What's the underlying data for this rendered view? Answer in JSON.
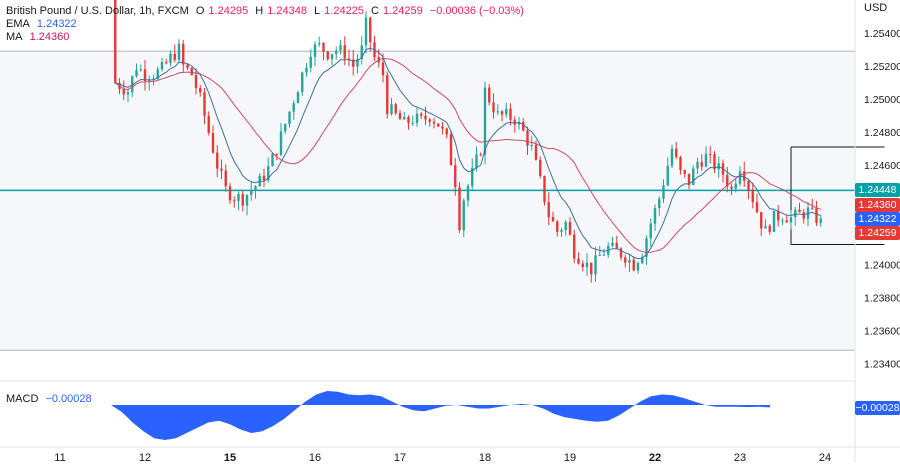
{
  "header": {
    "symbol": "British Pound / U.S. Dollar, 1h, FXCM",
    "open_label": "O",
    "open": "1.24295",
    "high_label": "H",
    "high": "1.24348",
    "low_label": "L",
    "low": "1.24225",
    "close_label": "C",
    "close": "1.24259",
    "change": "−0.00036 (−0.03%)"
  },
  "indicators": {
    "ema_label": "EMA",
    "ema_value": "1.24322",
    "ma_label": "MA",
    "ma_value": "1.24360",
    "macd_label": "MACD",
    "macd_value": "−0.00028"
  },
  "price_axis": {
    "currency": "USD",
    "ticks": [
      "1.25400",
      "1.25200",
      "1.25000",
      "1.24800",
      "1.24600",
      "1.24200",
      "1.24000",
      "1.23800",
      "1.23600",
      "1.23400"
    ]
  },
  "price_labels": [
    {
      "text": "1.24448",
      "color": "#00a2a6",
      "value": 1.24448
    },
    {
      "text": "1.24360",
      "color": "#e53935",
      "value": 1.2436
    },
    {
      "text": "1.24322",
      "color": "#2962ff",
      "value": 1.24322
    },
    {
      "text": "1.24259",
      "color": "#e53935",
      "value": 1.24259
    }
  ],
  "macd_axis_label": {
    "text": "−0.00028",
    "color": "#2962ff"
  },
  "time_axis": {
    "ticks": [
      "11",
      "12",
      "15",
      "16",
      "17",
      "18",
      "19",
      "22",
      "23",
      "24"
    ],
    "bold": [
      "15",
      "22"
    ]
  },
  "colors": {
    "up": "#26a69a",
    "down": "#e53935",
    "ema": "#3f6fa0",
    "ma": "#d04a5e",
    "hline": "#00a2a6",
    "macd": "#2962ff"
  },
  "chart_data": {
    "type": "candlestick",
    "title": "British Pound / U.S. Dollar, 1h, FXCM",
    "ylabel": "USD",
    "ylim": [
      1.233,
      1.256
    ],
    "horizontal_levels": [
      1.2529,
      1.24448,
      1.2348
    ],
    "range_box": {
      "top": 1.2471,
      "bottom": 1.2412,
      "from_day": 22.6,
      "to_day": 23.7
    },
    "x_ticks": [
      "11",
      "12",
      "15",
      "16",
      "17",
      "18",
      "19",
      "22",
      "23",
      "24"
    ],
    "close_path": [
      [
        11.6,
        1.256
      ],
      [
        11.65,
        1.251
      ],
      [
        11.8,
        1.2505
      ],
      [
        11.9,
        1.252
      ],
      [
        12.0,
        1.2515
      ],
      [
        12.1,
        1.2515
      ],
      [
        12.2,
        1.2518
      ],
      [
        12.3,
        1.2525
      ],
      [
        12.4,
        1.253
      ],
      [
        12.45,
        1.252
      ],
      [
        12.55,
        1.2515
      ],
      [
        12.65,
        1.25
      ],
      [
        12.75,
        1.248
      ],
      [
        12.85,
        1.246
      ],
      [
        12.95,
        1.2445
      ],
      [
        13.05,
        1.2441
      ],
      [
        13.15,
        1.244
      ],
      [
        13.25,
        1.2445
      ],
      [
        13.35,
        1.245
      ],
      [
        13.45,
        1.2458
      ],
      [
        13.55,
        1.247
      ],
      [
        13.65,
        1.2485
      ],
      [
        13.75,
        1.25
      ],
      [
        13.85,
        1.2515
      ],
      [
        13.95,
        1.253
      ],
      [
        14.05,
        1.2532
      ],
      [
        14.15,
        1.2528
      ],
      [
        14.25,
        1.253
      ],
      [
        14.35,
        1.2528
      ],
      [
        14.45,
        1.252
      ],
      [
        14.55,
        1.253
      ],
      [
        14.6,
        1.2545
      ],
      [
        14.7,
        1.2525
      ],
      [
        14.8,
        1.2515
      ],
      [
        14.85,
        1.2495
      ],
      [
        14.95,
        1.249
      ],
      [
        15.05,
        1.2485
      ],
      [
        15.15,
        1.2488
      ],
      [
        15.25,
        1.2487
      ],
      [
        15.35,
        1.249
      ],
      [
        15.45,
        1.2485
      ],
      [
        15.55,
        1.2475
      ],
      [
        15.65,
        1.245
      ],
      [
        15.7,
        1.2425
      ],
      [
        15.75,
        1.244
      ],
      [
        15.85,
        1.2455
      ],
      [
        15.95,
        1.247
      ],
      [
        16.0,
        1.2505
      ],
      [
        16.05,
        1.25
      ],
      [
        16.15,
        1.249
      ],
      [
        16.25,
        1.249
      ],
      [
        16.35,
        1.2488
      ],
      [
        16.45,
        1.248
      ],
      [
        16.55,
        1.247
      ],
      [
        16.65,
        1.245
      ],
      [
        16.75,
        1.243
      ],
      [
        16.85,
        1.242
      ],
      [
        16.95,
        1.2425
      ],
      [
        17.05,
        1.2408
      ],
      [
        17.15,
        1.2402
      ],
      [
        17.25,
        1.2397
      ],
      [
        17.35,
        1.2405
      ],
      [
        17.45,
        1.241
      ],
      [
        17.55,
        1.2408
      ],
      [
        17.65,
        1.2405
      ],
      [
        17.75,
        1.24
      ],
      [
        17.85,
        1.2408
      ],
      [
        17.95,
        1.2425
      ],
      [
        18.05,
        1.244
      ],
      [
        18.15,
        1.246
      ],
      [
        18.2,
        1.247
      ],
      [
        18.3,
        1.2455
      ],
      [
        18.4,
        1.245
      ],
      [
        18.5,
        1.2462
      ],
      [
        18.6,
        1.2465
      ],
      [
        18.7,
        1.246
      ],
      [
        18.8,
        1.2455
      ],
      [
        18.9,
        1.2445
      ],
      [
        19.0,
        1.246
      ],
      [
        19.05,
        1.2455
      ],
      [
        19.15,
        1.244
      ],
      [
        19.25,
        1.2425
      ],
      [
        19.3,
        1.242
      ],
      [
        19.4,
        1.2428
      ],
      [
        19.5,
        1.243
      ],
      [
        19.6,
        1.2428
      ],
      [
        19.7,
        1.243
      ],
      [
        19.8,
        1.2432
      ],
      [
        19.9,
        1.2428
      ],
      [
        19.95,
        1.2425
      ]
    ],
    "series": [
      {
        "name": "EMA",
        "value": 1.24322
      },
      {
        "name": "MA",
        "value": 1.2436
      }
    ],
    "macd": {
      "label": "MACD",
      "current": -0.00028,
      "x_start_day": 11.6,
      "values": [
        0.0,
        -0.2,
        -0.5,
        -0.75,
        -0.95,
        -1.0,
        -0.95,
        -0.8,
        -0.65,
        -0.5,
        -0.45,
        -0.55,
        -0.7,
        -0.8,
        -0.75,
        -0.6,
        -0.4,
        -0.15,
        0.1,
        0.3,
        0.4,
        0.38,
        0.3,
        0.28,
        0.3,
        0.25,
        0.1,
        -0.05,
        -0.15,
        -0.18,
        -0.1,
        -0.02,
        0.0,
        -0.05,
        -0.1,
        -0.1,
        -0.05,
        0.0,
        0.03,
        0.0,
        -0.1,
        -0.25,
        -0.35,
        -0.4,
        -0.45,
        -0.48,
        -0.45,
        -0.3,
        -0.1,
        0.1,
        0.25,
        0.3,
        0.28,
        0.2,
        0.1,
        0.0,
        -0.05,
        -0.05,
        -0.05,
        -0.06,
        -0.05,
        -0.07
      ]
    }
  }
}
